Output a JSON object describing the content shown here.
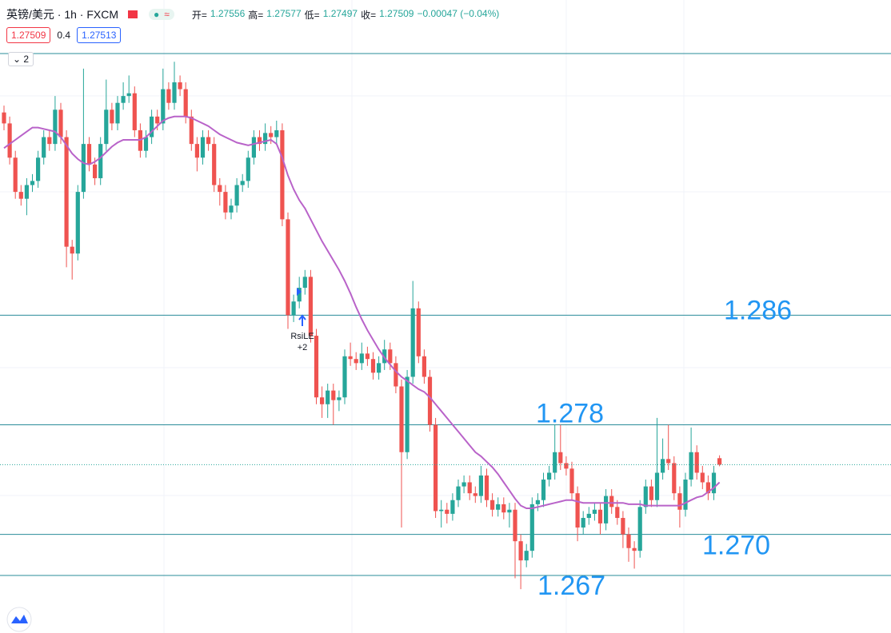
{
  "header": {
    "symbol": "英镑/美元 · 1h · FXCM",
    "open_label": "开=",
    "high_label": "高=",
    "low_label": "低=",
    "close_label": "收=",
    "change": "−0.00047 (−0.04%)",
    "price": "1.27509",
    "spread": "0.4",
    "ask": "1.27513",
    "badge": "2"
  },
  "annotations": {
    "signal": "RsiLE",
    "signal_qty": "+2"
  },
  "chart_data": {
    "type": "candlestick",
    "up_color": "#26a69a",
    "down_color": "#ef5350",
    "ma_color": "#b963c9",
    "level_color": "#2a8c9a",
    "label_color": "#2196f3",
    "ylim": [
      1.2628,
      1.3051
    ],
    "levels": [
      1.286,
      1.278,
      {
        "value": 1.27,
        "label": "1.270"
      },
      1.267
    ],
    "candles": [
      [
        1.3008,
        1.3013,
        1.2995,
        1.3
      ],
      [
        1.3,
        1.3005,
        1.297,
        1.2975
      ],
      [
        1.2975,
        1.298,
        1.2945,
        1.295
      ],
      [
        1.295,
        1.2955,
        1.294,
        1.2945
      ],
      [
        1.2945,
        1.296,
        1.2933,
        1.2955
      ],
      [
        1.2955,
        1.2963,
        1.295,
        1.2958
      ],
      [
        1.2958,
        1.298,
        1.2953,
        1.2975
      ],
      [
        1.2975,
        1.2995,
        1.297,
        1.299
      ],
      [
        1.299,
        1.2995,
        1.298,
        1.2985
      ],
      [
        1.2985,
        1.302,
        1.298,
        1.301
      ],
      [
        1.301,
        1.3015,
        1.2985,
        1.299
      ],
      [
        1.299,
        1.2995,
        1.2895,
        1.291
      ],
      [
        1.291,
        1.2915,
        1.2886,
        1.2905
      ],
      [
        1.2905,
        1.2955,
        1.29,
        1.295
      ],
      [
        1.295,
        1.304,
        1.2945,
        1.2985
      ],
      [
        1.2985,
        1.299,
        1.2965,
        1.297
      ],
      [
        1.297,
        1.2975,
        1.2955,
        1.296
      ],
      [
        1.296,
        1.299,
        1.2955,
        1.2985
      ],
      [
        1.2985,
        1.3032,
        1.298,
        1.301
      ],
      [
        1.301,
        1.3015,
        1.2995,
        1.3
      ],
      [
        1.3,
        1.302,
        1.2995,
        1.3015
      ],
      [
        1.3015,
        1.303,
        1.301,
        1.302
      ],
      [
        1.302,
        1.3035,
        1.3015,
        1.3022
      ],
      [
        1.3022,
        1.3027,
        1.299,
        1.2995
      ],
      [
        1.2995,
        1.3,
        1.2975,
        1.298
      ],
      [
        1.298,
        1.2995,
        1.2975,
        1.299
      ],
      [
        1.299,
        1.301,
        1.2985,
        1.3005
      ],
      [
        1.3005,
        1.301,
        1.2995,
        1.3
      ],
      [
        1.3,
        1.304,
        1.2995,
        1.3025
      ],
      [
        1.3025,
        1.303,
        1.301,
        1.3015
      ],
      [
        1.3015,
        1.3045,
        1.301,
        1.303
      ],
      [
        1.303,
        1.3035,
        1.302,
        1.3025
      ],
      [
        1.3025,
        1.303,
        1.3,
        1.3005
      ],
      [
        1.3005,
        1.301,
        1.298,
        1.2985
      ],
      [
        1.2985,
        1.299,
        1.2965,
        1.2975
      ],
      [
        1.2975,
        1.2995,
        1.297,
        1.299
      ],
      [
        1.299,
        1.2995,
        1.298,
        1.2985
      ],
      [
        1.2985,
        1.299,
        1.295,
        1.2955
      ],
      [
        1.2955,
        1.296,
        1.294,
        1.295
      ],
      [
        1.295,
        1.2955,
        1.293,
        1.2935
      ],
      [
        1.2935,
        1.2945,
        1.293,
        1.294
      ],
      [
        1.294,
        1.296,
        1.2935,
        1.2955
      ],
      [
        1.2955,
        1.2963,
        1.295,
        1.2958
      ],
      [
        1.2958,
        1.298,
        1.2953,
        1.2975
      ],
      [
        1.2975,
        1.2995,
        1.297,
        1.299
      ],
      [
        1.299,
        1.2995,
        1.298,
        1.2985
      ],
      [
        1.2985,
        1.3,
        1.298,
        1.2993
      ],
      [
        1.2993,
        1.2998,
        1.2985,
        1.299
      ],
      [
        1.299,
        1.3002,
        1.2985,
        1.2995
      ],
      [
        1.2995,
        1.3,
        1.2925,
        1.293
      ],
      [
        1.293,
        1.2935,
        1.285,
        1.286
      ],
      [
        1.286,
        1.2875,
        1.2855,
        1.287
      ],
      [
        1.287,
        1.2888,
        1.2865,
        1.288
      ],
      [
        1.288,
        1.2893,
        1.2875,
        1.2888
      ],
      [
        1.2888,
        1.2893,
        1.284,
        1.2845
      ],
      [
        1.2845,
        1.285,
        1.2795,
        1.28
      ],
      [
        1.28,
        1.2808,
        1.2785,
        1.2795
      ],
      [
        1.2795,
        1.281,
        1.2785,
        1.2805
      ],
      [
        1.2805,
        1.281,
        1.278,
        1.2798
      ],
      [
        1.2798,
        1.2805,
        1.279,
        1.28
      ],
      [
        1.28,
        1.2835,
        1.2795,
        1.283
      ],
      [
        1.283,
        1.284,
        1.2823,
        1.2828
      ],
      [
        1.2828,
        1.2833,
        1.282,
        1.2825
      ],
      [
        1.2825,
        1.284,
        1.282,
        1.2832
      ],
      [
        1.2832,
        1.2837,
        1.2823,
        1.2828
      ],
      [
        1.2828,
        1.2833,
        1.2813,
        1.2818
      ],
      [
        1.2818,
        1.283,
        1.2813,
        1.2825
      ],
      [
        1.2825,
        1.2842,
        1.282,
        1.2835
      ],
      [
        1.2835,
        1.284,
        1.282,
        1.2825
      ],
      [
        1.2825,
        1.283,
        1.2803,
        1.2808
      ],
      [
        1.2808,
        1.2813,
        1.2705,
        1.276
      ],
      [
        1.276,
        1.282,
        1.2755,
        1.2815
      ],
      [
        1.2815,
        1.2885,
        1.281,
        1.2865
      ],
      [
        1.2865,
        1.287,
        1.2825,
        1.283
      ],
      [
        1.283,
        1.2835,
        1.281,
        1.2815
      ],
      [
        1.2815,
        1.282,
        1.2775,
        1.278
      ],
      [
        1.278,
        1.2785,
        1.2712,
        1.2717
      ],
      [
        1.2717,
        1.2725,
        1.2705,
        1.2718
      ],
      [
        1.2718,
        1.2723,
        1.2708,
        1.2715
      ],
      [
        1.2715,
        1.273,
        1.271,
        1.2725
      ],
      [
        1.2725,
        1.274,
        1.272,
        1.2735
      ],
      [
        1.2735,
        1.2743,
        1.273,
        1.2738
      ],
      [
        1.2738,
        1.2743,
        1.2725,
        1.273
      ],
      [
        1.273,
        1.2735,
        1.2723,
        1.2728
      ],
      [
        1.2728,
        1.275,
        1.2723,
        1.2743
      ],
      [
        1.2743,
        1.2748,
        1.272,
        1.2725
      ],
      [
        1.2725,
        1.273,
        1.2713,
        1.2718
      ],
      [
        1.2718,
        1.2727,
        1.2713,
        1.2722
      ],
      [
        1.2722,
        1.2727,
        1.2711,
        1.2716
      ],
      [
        1.2716,
        1.2723,
        1.2705,
        1.2718
      ],
      [
        1.2718,
        1.2723,
        1.2668,
        1.2695
      ],
      [
        1.2695,
        1.27,
        1.266,
        1.2681
      ],
      [
        1.2681,
        1.2693,
        1.2676,
        1.2688
      ],
      [
        1.2688,
        1.2727,
        1.2683,
        1.2722
      ],
      [
        1.2722,
        1.273,
        1.2717,
        1.2725
      ],
      [
        1.2725,
        1.2745,
        1.272,
        1.274
      ],
      [
        1.274,
        1.275,
        1.2735,
        1.2745
      ],
      [
        1.2745,
        1.278,
        1.274,
        1.276
      ],
      [
        1.276,
        1.278,
        1.2747,
        1.2752
      ],
      [
        1.2752,
        1.2757,
        1.2743,
        1.2748
      ],
      [
        1.2748,
        1.2753,
        1.2725,
        1.273
      ],
      [
        1.273,
        1.2735,
        1.2695,
        1.2705
      ],
      [
        1.2705,
        1.2717,
        1.27,
        1.2712
      ],
      [
        1.2712,
        1.272,
        1.2707,
        1.2715
      ],
      [
        1.2715,
        1.2723,
        1.271,
        1.2718
      ],
      [
        1.2718,
        1.2723,
        1.27,
        1.2708
      ],
      [
        1.2708,
        1.2733,
        1.2703,
        1.2728
      ],
      [
        1.2728,
        1.2733,
        1.2715,
        1.272
      ],
      [
        1.272,
        1.2725,
        1.2707,
        1.2712
      ],
      [
        1.2712,
        1.2717,
        1.269,
        1.27
      ],
      [
        1.27,
        1.2705,
        1.268,
        1.269
      ],
      [
        1.269,
        1.2695,
        1.2675,
        1.2688
      ],
      [
        1.2688,
        1.2725,
        1.2683,
        1.272
      ],
      [
        1.272,
        1.274,
        1.2715,
        1.2735
      ],
      [
        1.2735,
        1.274,
        1.272,
        1.2725
      ],
      [
        1.2725,
        1.2785,
        1.272,
        1.2745
      ],
      [
        1.2745,
        1.277,
        1.274,
        1.2755
      ],
      [
        1.2755,
        1.278,
        1.2747,
        1.2752
      ],
      [
        1.2752,
        1.2757,
        1.2725,
        1.273
      ],
      [
        1.273,
        1.2735,
        1.2705,
        1.2718
      ],
      [
        1.2718,
        1.2745,
        1.2713,
        1.274
      ],
      [
        1.274,
        1.2778,
        1.2735,
        1.276
      ],
      [
        1.276,
        1.2765,
        1.274,
        1.2745
      ],
      [
        1.2745,
        1.275,
        1.2733,
        1.2738
      ],
      [
        1.2738,
        1.2743,
        1.2725,
        1.273
      ],
      [
        1.273,
        1.275,
        1.2725,
        1.2745
      ],
      [
        1.27556,
        1.27577,
        1.27497,
        1.27509
      ]
    ],
    "ma": [
      1.2982,
      1.2985,
      1.2988,
      1.2991,
      1.2994,
      1.2997,
      1.2997,
      1.2996,
      1.2995,
      1.2994,
      1.299,
      1.2984,
      1.2978,
      1.2974,
      1.2971,
      1.297,
      1.2972,
      1.2975,
      1.2979,
      1.2983,
      1.2986,
      1.2988,
      1.2988,
      1.2988,
      1.2988,
      1.299,
      1.2994,
      1.2998,
      1.3002,
      1.3004,
      1.3005,
      1.3005,
      1.3005,
      1.3004,
      1.3002,
      1.3,
      1.2998,
      1.2995,
      1.2992,
      1.299,
      1.2988,
      1.2986,
      1.2985,
      1.2984,
      1.2985,
      1.2986,
      1.2987,
      1.2988,
      1.2985,
      1.2975,
      1.2962,
      1.2952,
      1.2944,
      1.2938,
      1.293,
      1.2922,
      1.2914,
      1.2907,
      1.29,
      1.2893,
      1.2885,
      1.2876,
      1.2866,
      1.2857,
      1.2849,
      1.2842,
      1.2835,
      1.2829,
      1.2824,
      1.2819,
      1.2815,
      1.2812,
      1.2809,
      1.2806,
      1.2804,
      1.28,
      1.2795,
      1.279,
      1.2785,
      1.278,
      1.2775,
      1.277,
      1.2765,
      1.276,
      1.2757,
      1.2753,
      1.2749,
      1.2744,
      1.2738,
      1.2732,
      1.2726,
      1.2721,
      1.2719,
      1.2719,
      1.272,
      1.2721,
      1.2722,
      1.2723,
      1.2724,
      1.2725,
      1.2725,
      1.2724,
      1.2723,
      1.2723,
      1.2723,
      1.2723,
      1.2723,
      1.2723,
      1.2723,
      1.2723,
      1.2722,
      1.2722,
      1.2722,
      1.2721,
      1.2721,
      1.2721,
      1.2721,
      1.2721,
      1.2721,
      1.2721,
      1.2723,
      1.2725,
      1.2727,
      1.2728,
      1.2731,
      1.2734,
      1.2738
    ]
  }
}
